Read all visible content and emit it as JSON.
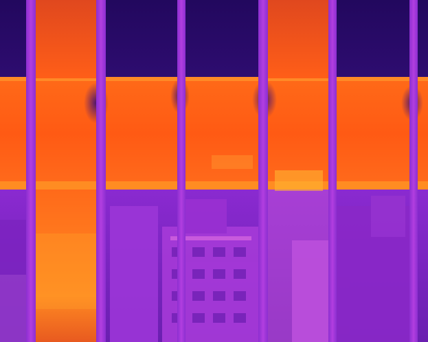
{
  "image": {
    "palette": "iron",
    "colors": {
      "cold": "#1c0858",
      "cool": "#5a18a8",
      "mid": "#b02bd0",
      "warm": "#ff5a16",
      "hot": "#ffb02a"
    }
  }
}
